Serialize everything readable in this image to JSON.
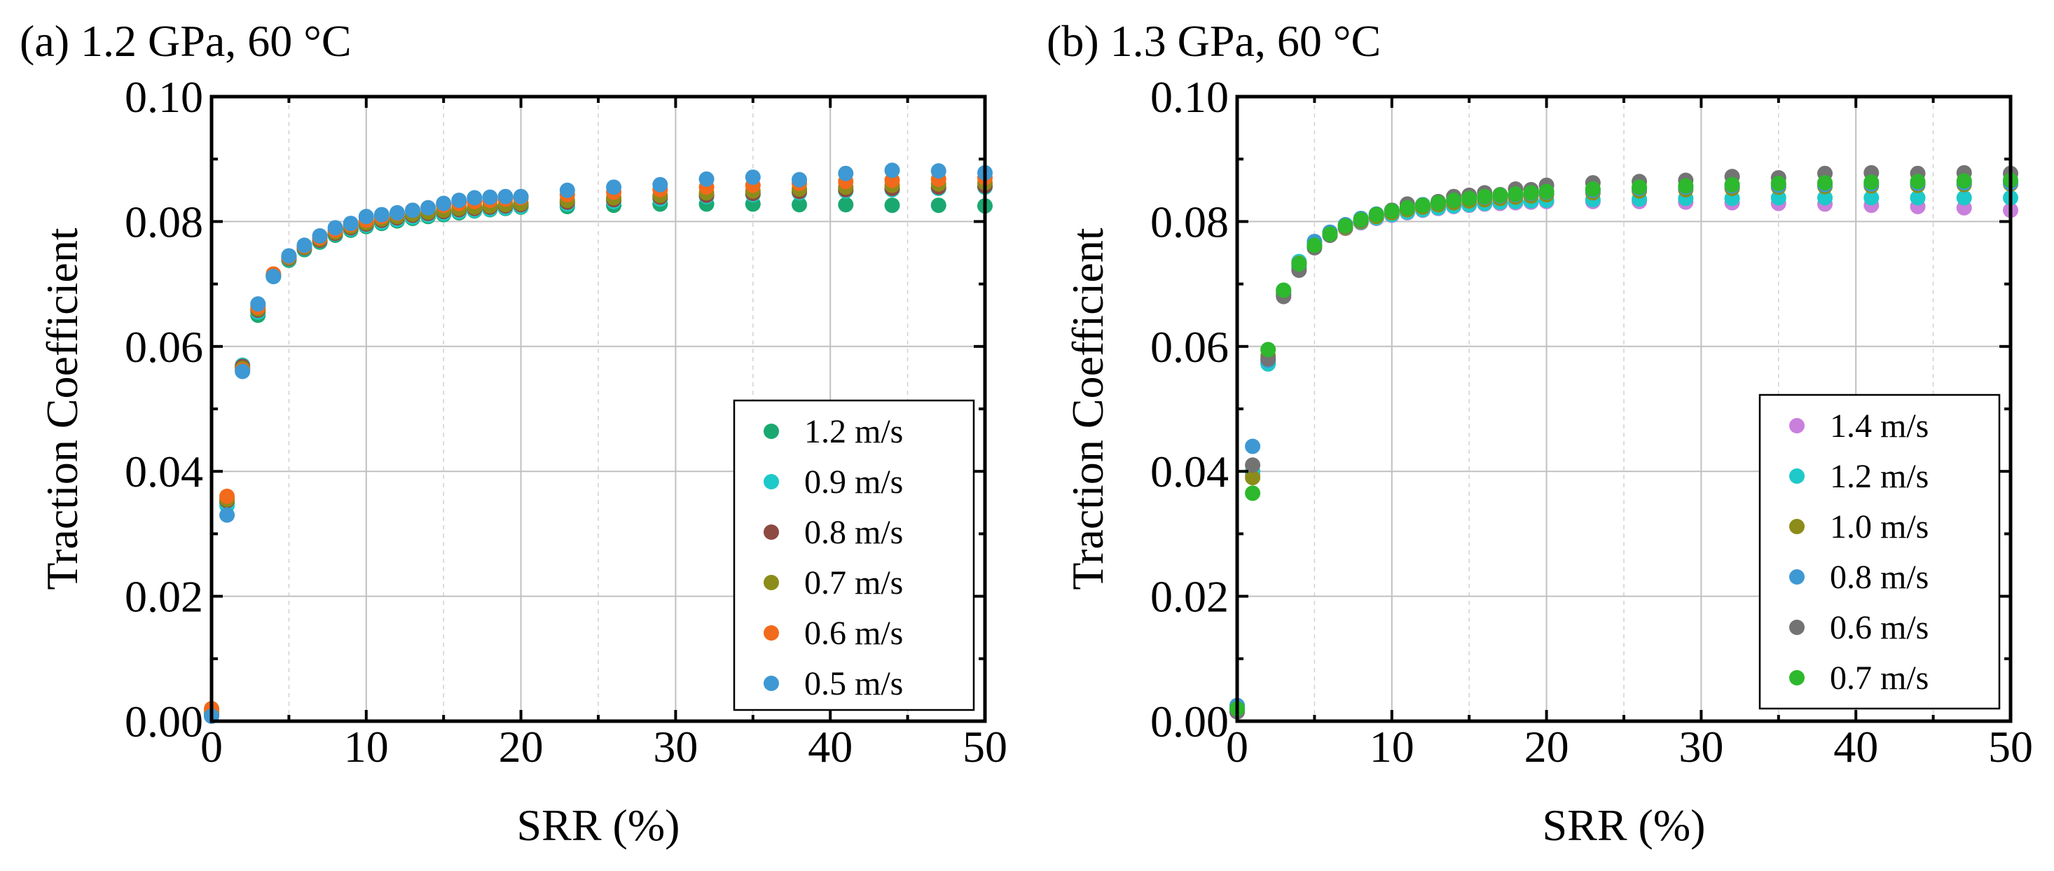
{
  "chart_data": [
    {
      "type": "scatter",
      "panel_title": "(a) 1.2 GPa, 60 °C",
      "xlabel": "SRR (%)",
      "ylabel": "Traction Coefficient",
      "xlim": [
        0,
        50
      ],
      "ylim": [
        0,
        0.1
      ],
      "xticks": [
        0,
        10,
        20,
        30,
        40,
        50
      ],
      "yticks": [
        0.0,
        0.02,
        0.04,
        0.06,
        0.08,
        0.1
      ],
      "xtick_labels": [
        "0",
        "10",
        "20",
        "30",
        "40",
        "50"
      ],
      "ytick_labels": [
        "0.00",
        "0.02",
        "0.04",
        "0.06",
        "0.08",
        "0.10"
      ],
      "grid": true,
      "legend_position": "lower-right",
      "x": [
        0,
        1,
        2,
        3,
        4,
        5,
        6,
        7,
        8,
        9,
        10,
        11,
        12,
        13,
        14,
        15,
        16,
        17,
        18,
        19,
        20,
        23,
        26,
        29,
        32,
        35,
        38,
        41,
        44,
        47,
        50
      ],
      "series": [
        {
          "name": "1.2 m/s",
          "color": "#1aa871",
          "values": [
            0.001,
            0.035,
            0.0565,
            0.065,
            0.0712,
            0.0738,
            0.0755,
            0.0767,
            0.0778,
            0.0786,
            0.0792,
            0.0797,
            0.0801,
            0.0805,
            0.0808,
            0.0811,
            0.0814,
            0.0817,
            0.0819,
            0.0821,
            0.0823,
            0.0824,
            0.0826,
            0.0828,
            0.0828,
            0.0828,
            0.0827,
            0.0827,
            0.0826,
            0.0826,
            0.0825
          ]
        },
        {
          "name": "0.9 m/s",
          "color": "#1ec9c9",
          "values": [
            0.001,
            0.0345,
            0.057,
            0.0655,
            0.0712,
            0.074,
            0.0757,
            0.0769,
            0.078,
            0.0788,
            0.0794,
            0.0799,
            0.0803,
            0.0807,
            0.081,
            0.0813,
            0.0816,
            0.0818,
            0.082,
            0.0822,
            0.0824,
            0.0828,
            0.0832,
            0.0836,
            0.084,
            0.0843,
            0.0846,
            0.0849,
            0.0851,
            0.0853,
            0.0855
          ]
        },
        {
          "name": "0.8 m/s",
          "color": "#8c4a42",
          "values": [
            0.001,
            0.0353,
            0.0568,
            0.0658,
            0.0714,
            0.0741,
            0.0758,
            0.077,
            0.0781,
            0.079,
            0.0796,
            0.0802,
            0.0806,
            0.081,
            0.0813,
            0.0816,
            0.0819,
            0.0821,
            0.0823,
            0.0825,
            0.0827,
            0.0831,
            0.0835,
            0.0839,
            0.0842,
            0.0845,
            0.0848,
            0.0851,
            0.0853,
            0.0855,
            0.0857
          ]
        },
        {
          "name": "0.7 m/s",
          "color": "#8c8c1a",
          "values": [
            0.0015,
            0.0355,
            0.0565,
            0.066,
            0.0715,
            0.0742,
            0.0759,
            0.0772,
            0.0783,
            0.0792,
            0.0798,
            0.0804,
            0.0808,
            0.0812,
            0.0815,
            0.0818,
            0.0821,
            0.0823,
            0.0825,
            0.0827,
            0.0829,
            0.0834,
            0.0838,
            0.0842,
            0.0846,
            0.0849,
            0.0852,
            0.0855,
            0.0858,
            0.086,
            0.0862
          ]
        },
        {
          "name": "0.6 m/s",
          "color": "#f26a1b",
          "values": [
            0.002,
            0.036,
            0.0562,
            0.0663,
            0.0716,
            0.0744,
            0.0761,
            0.0774,
            0.0786,
            0.0795,
            0.0802,
            0.0808,
            0.0813,
            0.0818,
            0.0822,
            0.0826,
            0.0829,
            0.0832,
            0.0834,
            0.0836,
            0.0838,
            0.0843,
            0.0847,
            0.0851,
            0.0855,
            0.0858,
            0.0861,
            0.0864,
            0.0866,
            0.0868,
            0.087
          ]
        },
        {
          "name": "0.5 m/s",
          "color": "#3e98d3",
          "values": [
            0.0008,
            0.033,
            0.056,
            0.0668,
            0.0712,
            0.0745,
            0.0762,
            0.0777,
            0.079,
            0.0797,
            0.0808,
            0.0811,
            0.0814,
            0.0818,
            0.0822,
            0.0829,
            0.0834,
            0.0838,
            0.0839,
            0.084,
            0.084,
            0.085,
            0.0855,
            0.0859,
            0.0868,
            0.0871,
            0.0867,
            0.0877,
            0.0882,
            0.0881,
            0.0878
          ]
        }
      ]
    },
    {
      "type": "scatter",
      "panel_title": "(b) 1.3 GPa, 60 °C",
      "xlabel": "SRR (%)",
      "ylabel": "Traction Coefficient",
      "xlim": [
        0,
        50
      ],
      "ylim": [
        0,
        0.1
      ],
      "xticks": [
        0,
        10,
        20,
        30,
        40,
        50
      ],
      "yticks": [
        0.0,
        0.02,
        0.04,
        0.06,
        0.08,
        0.1
      ],
      "xtick_labels": [
        "0",
        "10",
        "20",
        "30",
        "40",
        "50"
      ],
      "ytick_labels": [
        "0.00",
        "0.02",
        "0.04",
        "0.06",
        "0.08",
        "0.10"
      ],
      "grid": true,
      "legend_position": "lower-right",
      "x": [
        0,
        1,
        2,
        3,
        4,
        5,
        6,
        7,
        8,
        9,
        10,
        11,
        12,
        13,
        14,
        15,
        16,
        17,
        18,
        19,
        20,
        23,
        26,
        29,
        32,
        35,
        38,
        41,
        44,
        47,
        50
      ],
      "series": [
        {
          "name": "1.4 m/s",
          "color": "#c97fdc",
          "values": [
            0.0015,
            0.0395,
            0.0575,
            0.0688,
            0.0735,
            0.0762,
            0.0778,
            0.0789,
            0.0798,
            0.0805,
            0.081,
            0.0814,
            0.0818,
            0.0821,
            0.0824,
            0.0826,
            0.0828,
            0.0829,
            0.083,
            0.0831,
            0.0832,
            0.0832,
            0.0832,
            0.0831,
            0.083,
            0.0829,
            0.0828,
            0.0826,
            0.0824,
            0.0822,
            0.0818
          ]
        },
        {
          "name": "1.2 m/s",
          "color": "#1ec9c9",
          "values": [
            0.002,
            0.04,
            0.0572,
            0.069,
            0.0736,
            0.0763,
            0.0779,
            0.079,
            0.0799,
            0.0806,
            0.0811,
            0.0815,
            0.0819,
            0.0822,
            0.0825,
            0.0827,
            0.0829,
            0.0831,
            0.0832,
            0.0833,
            0.0834,
            0.0835,
            0.0836,
            0.0837,
            0.0837,
            0.0838,
            0.0838,
            0.0838,
            0.0838,
            0.0838,
            0.0838
          ]
        },
        {
          "name": "1.0 m/s",
          "color": "#8c8c1a",
          "values": [
            0.0025,
            0.039,
            0.0585,
            0.0685,
            0.0733,
            0.0761,
            0.0778,
            0.079,
            0.08,
            0.0808,
            0.0814,
            0.0819,
            0.0823,
            0.0827,
            0.083,
            0.0833,
            0.0835,
            0.0837,
            0.0839,
            0.0841,
            0.0843,
            0.0846,
            0.0849,
            0.0851,
            0.0853,
            0.0855,
            0.0856,
            0.0857,
            0.0858,
            0.0859,
            0.086
          ]
        },
        {
          "name": "0.8 m/s",
          "color": "#3e98d3",
          "values": [
            0.0025,
            0.044,
            0.0578,
            0.0683,
            0.0728,
            0.0768,
            0.0783,
            0.0795,
            0.0805,
            0.0812,
            0.0818,
            0.0823,
            0.0827,
            0.0831,
            0.0834,
            0.0837,
            0.0839,
            0.0841,
            0.0843,
            0.0845,
            0.0847,
            0.085,
            0.0853,
            0.0855,
            0.0857,
            0.0858,
            0.0859,
            0.086,
            0.0861,
            0.0862,
            0.0862
          ]
        },
        {
          "name": "0.6 m/s",
          "color": "#737373",
          "values": [
            0.0015,
            0.041,
            0.058,
            0.068,
            0.0722,
            0.0758,
            0.0778,
            0.0792,
            0.0802,
            0.0811,
            0.0818,
            0.0828,
            0.0826,
            0.0832,
            0.084,
            0.0842,
            0.0846,
            0.0843,
            0.0852,
            0.0851,
            0.0858,
            0.0862,
            0.0864,
            0.0866,
            0.0872,
            0.087,
            0.0877,
            0.0878,
            0.0877,
            0.0878,
            0.0877
          ]
        },
        {
          "name": "0.7 m/s",
          "color": "#2db82d",
          "values": [
            0.002,
            0.0365,
            0.0595,
            0.069,
            0.0732,
            0.0762,
            0.078,
            0.0793,
            0.0803,
            0.0811,
            0.0817,
            0.0822,
            0.0826,
            0.083,
            0.0834,
            0.0837,
            0.084,
            0.0842,
            0.0844,
            0.0846,
            0.0848,
            0.0852,
            0.0855,
            0.0857,
            0.0859,
            0.0861,
            0.0862,
            0.0863,
            0.0864,
            0.0865,
            0.0866
          ]
        }
      ]
    }
  ]
}
